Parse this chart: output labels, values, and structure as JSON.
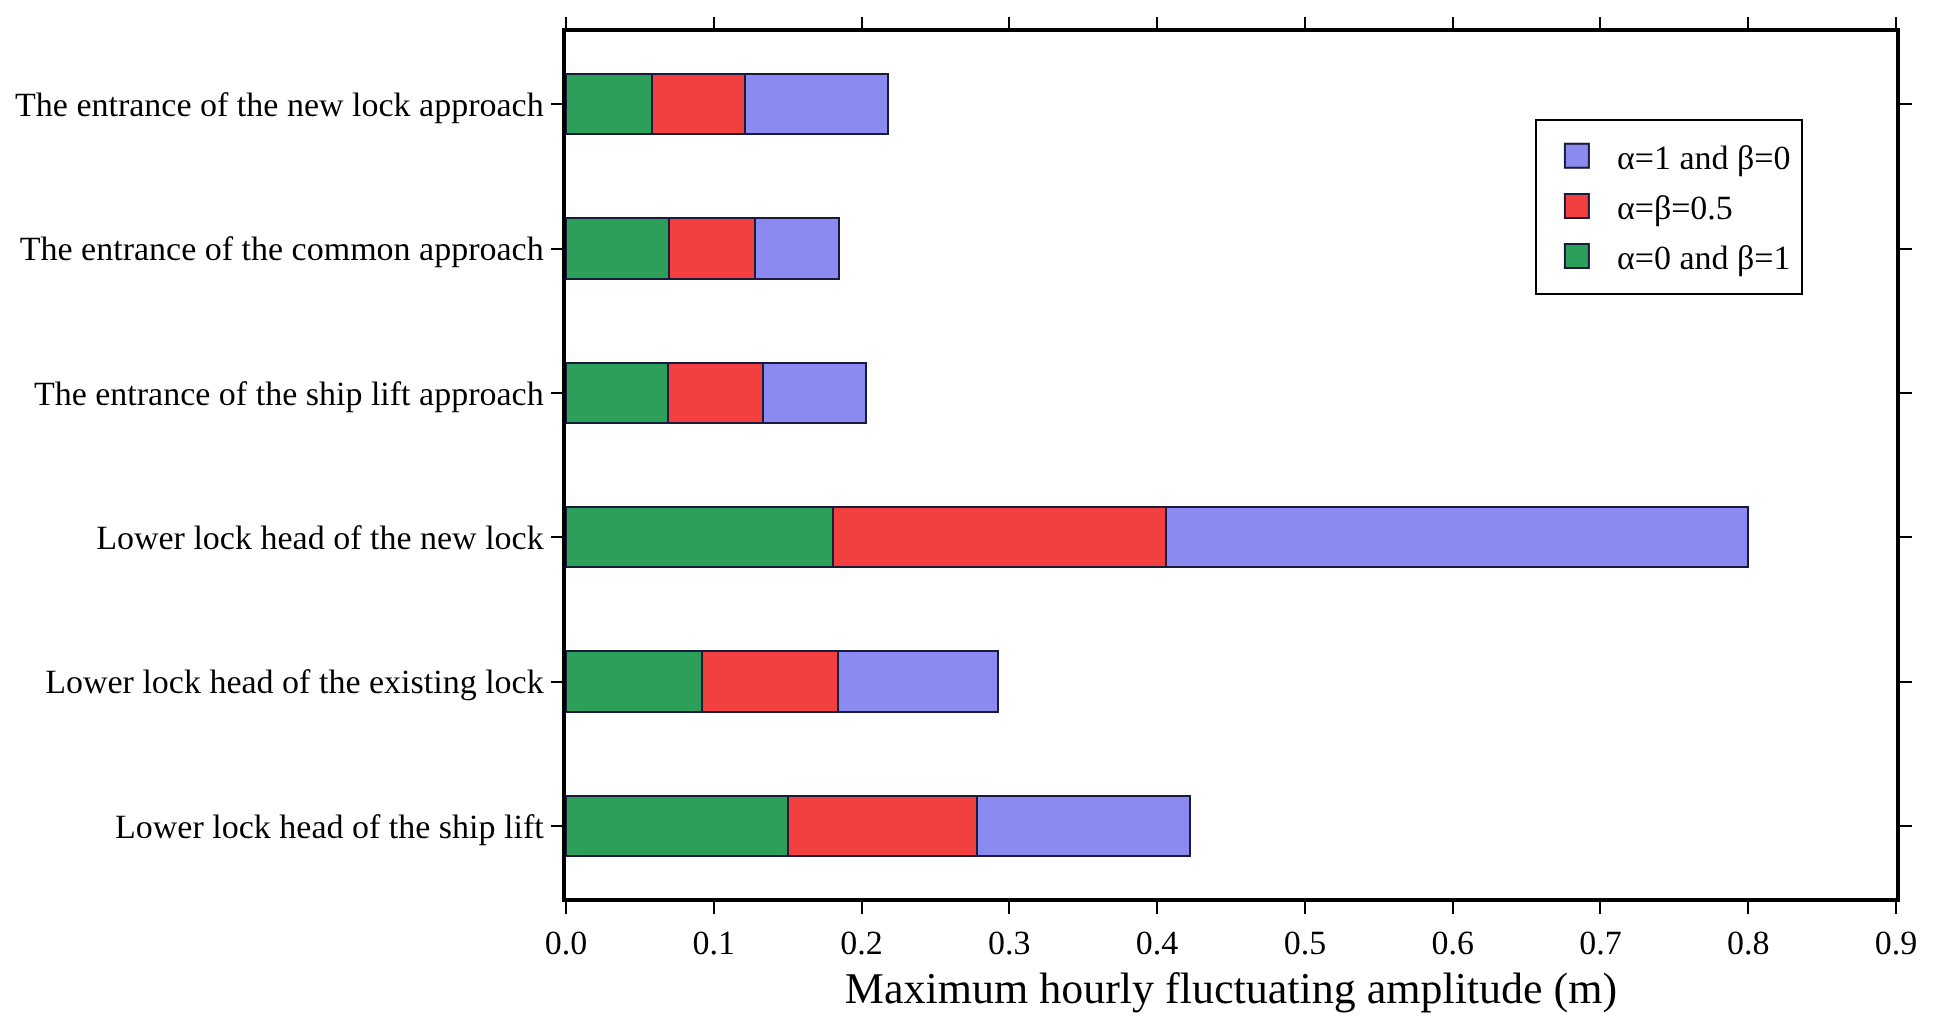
{
  "chart_data": {
    "type": "bar",
    "orientation": "horizontal",
    "stacked": true,
    "categories": [
      "The entrance of the new lock approach",
      "The entrance of the common approach",
      "The entrance of the ship lift approach",
      "Lower lock head of the new lock",
      "Lower lock head of the existing lock",
      "Lower lock head of the ship lift"
    ],
    "series": [
      {
        "name": "α=0 and β=1",
        "color": "#2ca05a",
        "values": [
          0.058,
          0.07,
          0.069,
          0.181,
          0.092,
          0.15
        ]
      },
      {
        "name": "α=β=0.5",
        "color": "#f24040",
        "values": [
          0.063,
          0.058,
          0.064,
          0.225,
          0.092,
          0.128
        ]
      },
      {
        "name": "α=1 and β=0",
        "color": "#8a8af0",
        "values": [
          0.097,
          0.057,
          0.07,
          0.394,
          0.108,
          0.144
        ]
      }
    ],
    "xlabel": "Maximum hourly fluctuating amplitude (m)",
    "xlim": [
      0,
      0.9
    ],
    "xticks": [
      {
        "value": 0,
        "label": "0.0"
      },
      0.1,
      0.2,
      0.3,
      0.4,
      0.5,
      0.6,
      0.7,
      0.8,
      0.9
    ],
    "legend": "top right"
  }
}
